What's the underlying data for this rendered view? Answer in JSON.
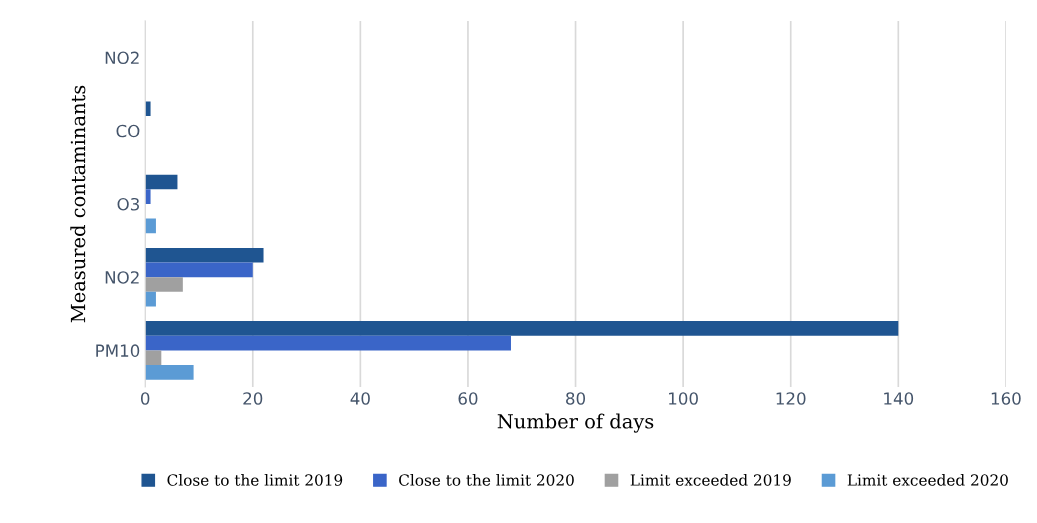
{
  "chart_data": {
    "type": "bar",
    "orientation": "horizontal",
    "xlabel": "Number of days",
    "ylabel": "Measured contaminants",
    "categories": [
      "NO2",
      "CO",
      "O3",
      "NO2",
      "PM10"
    ],
    "series": [
      {
        "name": "Close to the limit 2019",
        "color": "#1f5591",
        "values": [
          0,
          1,
          6,
          22,
          140
        ]
      },
      {
        "name": "Close to the limit 2020",
        "color": "#3a65c8",
        "values": [
          0,
          0,
          1,
          20,
          68
        ]
      },
      {
        "name": "Limit exceeded 2019",
        "color": "#a0a0a0",
        "values": [
          0,
          0,
          0,
          7,
          3
        ]
      },
      {
        "name": "Limit exceeded 2020",
        "color": "#5b9bd5",
        "values": [
          0,
          0,
          2,
          2,
          9
        ]
      }
    ],
    "xlim": [
      0,
      160
    ],
    "xticks": [
      0,
      20,
      40,
      60,
      80,
      100,
      120,
      140,
      160
    ],
    "grid": "x",
    "legend": "bottom"
  }
}
